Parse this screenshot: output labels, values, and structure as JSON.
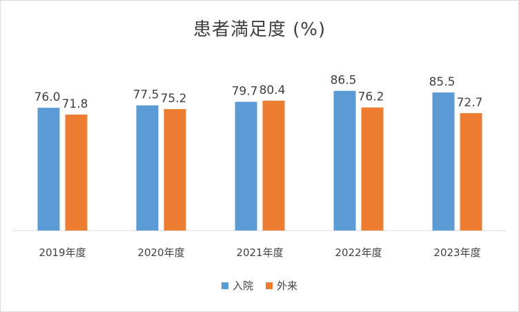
{
  "chart_data": {
    "type": "bar",
    "title": "患者満足度 (%)",
    "xlabel": "",
    "ylabel": "",
    "ylim": [
      0,
      100
    ],
    "grid": false,
    "legend_position": "bottom",
    "categories": [
      "2019年度",
      "2020年度",
      "2021年度",
      "2022年度",
      "2023年度"
    ],
    "series": [
      {
        "name": "入院",
        "color": "#5b9bd5",
        "values": [
          76.0,
          77.5,
          79.7,
          86.5,
          85.5
        ],
        "labels": [
          "76.0",
          "77.5",
          "79.7",
          "86.5",
          "85.5"
        ]
      },
      {
        "name": "外来",
        "color": "#ed7d31",
        "values": [
          71.8,
          75.2,
          80.4,
          76.2,
          72.7
        ],
        "labels": [
          "71.8",
          "75.2",
          "80.4",
          "76.2",
          "72.7"
        ]
      }
    ]
  }
}
